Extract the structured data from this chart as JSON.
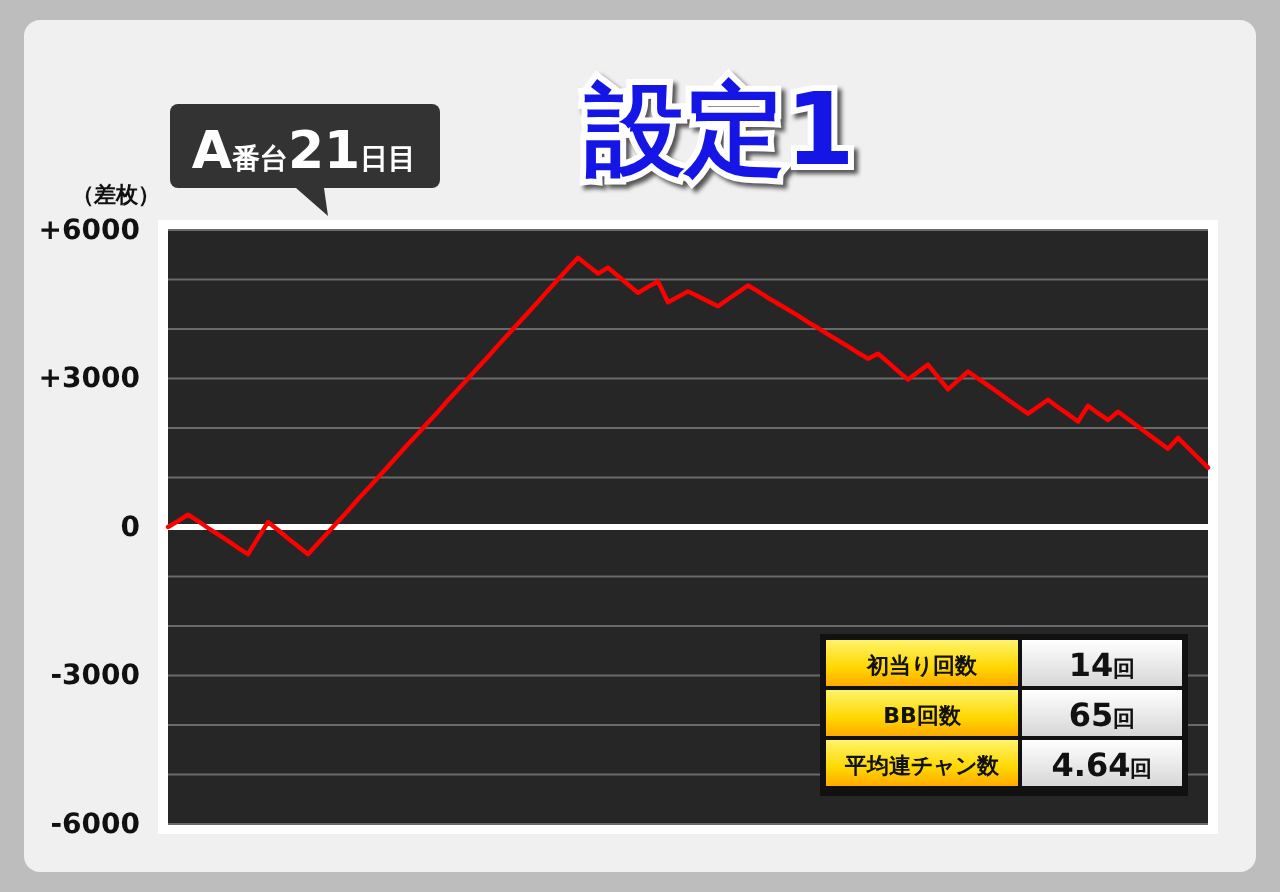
{
  "chart_data": {
    "type": "line",
    "title": "設定1",
    "subtitle": "A番台21日目",
    "ylabel": "（差枚）",
    "categories": [
      null,
      null,
      null,
      null,
      null,
      null,
      null,
      null,
      null,
      null,
      null,
      null,
      null,
      null,
      null,
      null,
      null,
      null,
      null,
      null,
      null,
      null,
      null,
      null,
      null,
      null,
      null,
      null,
      null,
      null,
      null,
      null,
      null,
      null,
      null,
      null,
      null,
      null,
      null,
      null,
      null,
      null,
      null,
      null,
      null,
      null,
      null,
      null,
      null,
      null,
      null,
      null,
      null,
      null,
      null,
      null,
      null,
      null,
      null,
      null,
      null,
      null,
      null,
      null,
      null,
      null,
      null,
      null,
      null,
      null,
      null,
      null,
      null,
      null,
      null,
      null,
      null,
      null,
      null,
      null,
      null,
      null,
      null,
      null,
      null,
      null,
      null,
      null,
      null,
      null,
      null,
      null,
      null,
      null,
      null,
      null,
      null,
      null,
      null,
      null,
      null,
      null,
      null,
      null,
      null
    ],
    "series": [
      {
        "color": "#ff0000",
        "values": [
          0,
          120,
          250,
          120,
          -20,
          -150,
          -280,
          -420,
          -550,
          -220,
          100,
          -60,
          -230,
          -390,
          -550,
          -330,
          -110,
          110,
          330,
          560,
          780,
          1000,
          1220,
          1450,
          1670,
          1890,
          2110,
          2330,
          2560,
          2780,
          3000,
          3220,
          3440,
          3670,
          3890,
          4110,
          4330,
          4550,
          4780,
          5000,
          5220,
          5440,
          5280,
          5120,
          5240,
          5070,
          4900,
          4730,
          4850,
          4960,
          4540,
          4650,
          4760,
          4660,
          4560,
          4460,
          4600,
          4740,
          4880,
          4760,
          4630,
          4510,
          4390,
          4270,
          4140,
          4020,
          3890,
          3770,
          3650,
          3520,
          3400,
          3500,
          3330,
          3150,
          2980,
          3130,
          3280,
          3030,
          2780,
          2960,
          3140,
          3000,
          2860,
          2720,
          2570,
          2430,
          2290,
          2430,
          2570,
          2420,
          2280,
          2130,
          2450,
          2300,
          2160,
          2330,
          2180,
          2030,
          1880,
          1730,
          1580,
          1800,
          1600,
          1400,
          1200
        ]
      }
    ],
    "ylim": [
      -6000,
      6000
    ],
    "yticks": [
      {
        "value": -6000,
        "label": "-6000"
      },
      {
        "value": -5000,
        "label": null
      },
      {
        "value": -4000,
        "label": null
      },
      {
        "value": -3000,
        "label": "-3000"
      },
      {
        "value": -2000,
        "label": null
      },
      {
        "value": -1000,
        "label": null
      },
      0,
      {
        "value": 1000,
        "label": null
      },
      {
        "value": 2000,
        "label": null
      },
      {
        "value": 3000,
        "label": "+3000"
      },
      {
        "value": 4000,
        "label": null
      },
      {
        "value": 5000,
        "label": null
      },
      {
        "value": 6000,
        "label": "+6000"
      }
    ],
    "tick_labels": "y",
    "grid": "y",
    "marker": "none",
    "line_style": "solid",
    "ref_lines": [
      {
        "axis": "y",
        "value": 0,
        "color": "#ffffff"
      }
    ],
    "annotations": [
      "初当り回数",
      "14回",
      "BB回数",
      "65回",
      "平均連チャン数",
      "4.64回"
    ]
  }
}
